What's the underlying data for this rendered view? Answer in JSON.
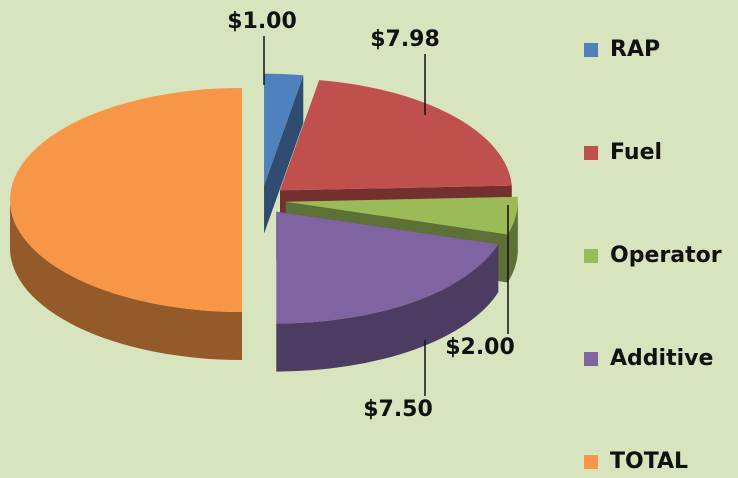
{
  "chart_data": {
    "type": "pie",
    "categories": [
      "RAP",
      "Fuel",
      "Operator",
      "Additive",
      "TOTAL"
    ],
    "values": [
      1.0,
      7.98,
      2.0,
      7.5,
      18.48
    ],
    "value_labels": [
      "$1.00",
      "$7.98",
      "$2.00",
      "$7.50",
      null
    ],
    "colors": [
      "#4f81bd",
      "#c0504d",
      "#9bbb59",
      "#8064a2",
      "#f79646"
    ],
    "legend": "right"
  }
}
